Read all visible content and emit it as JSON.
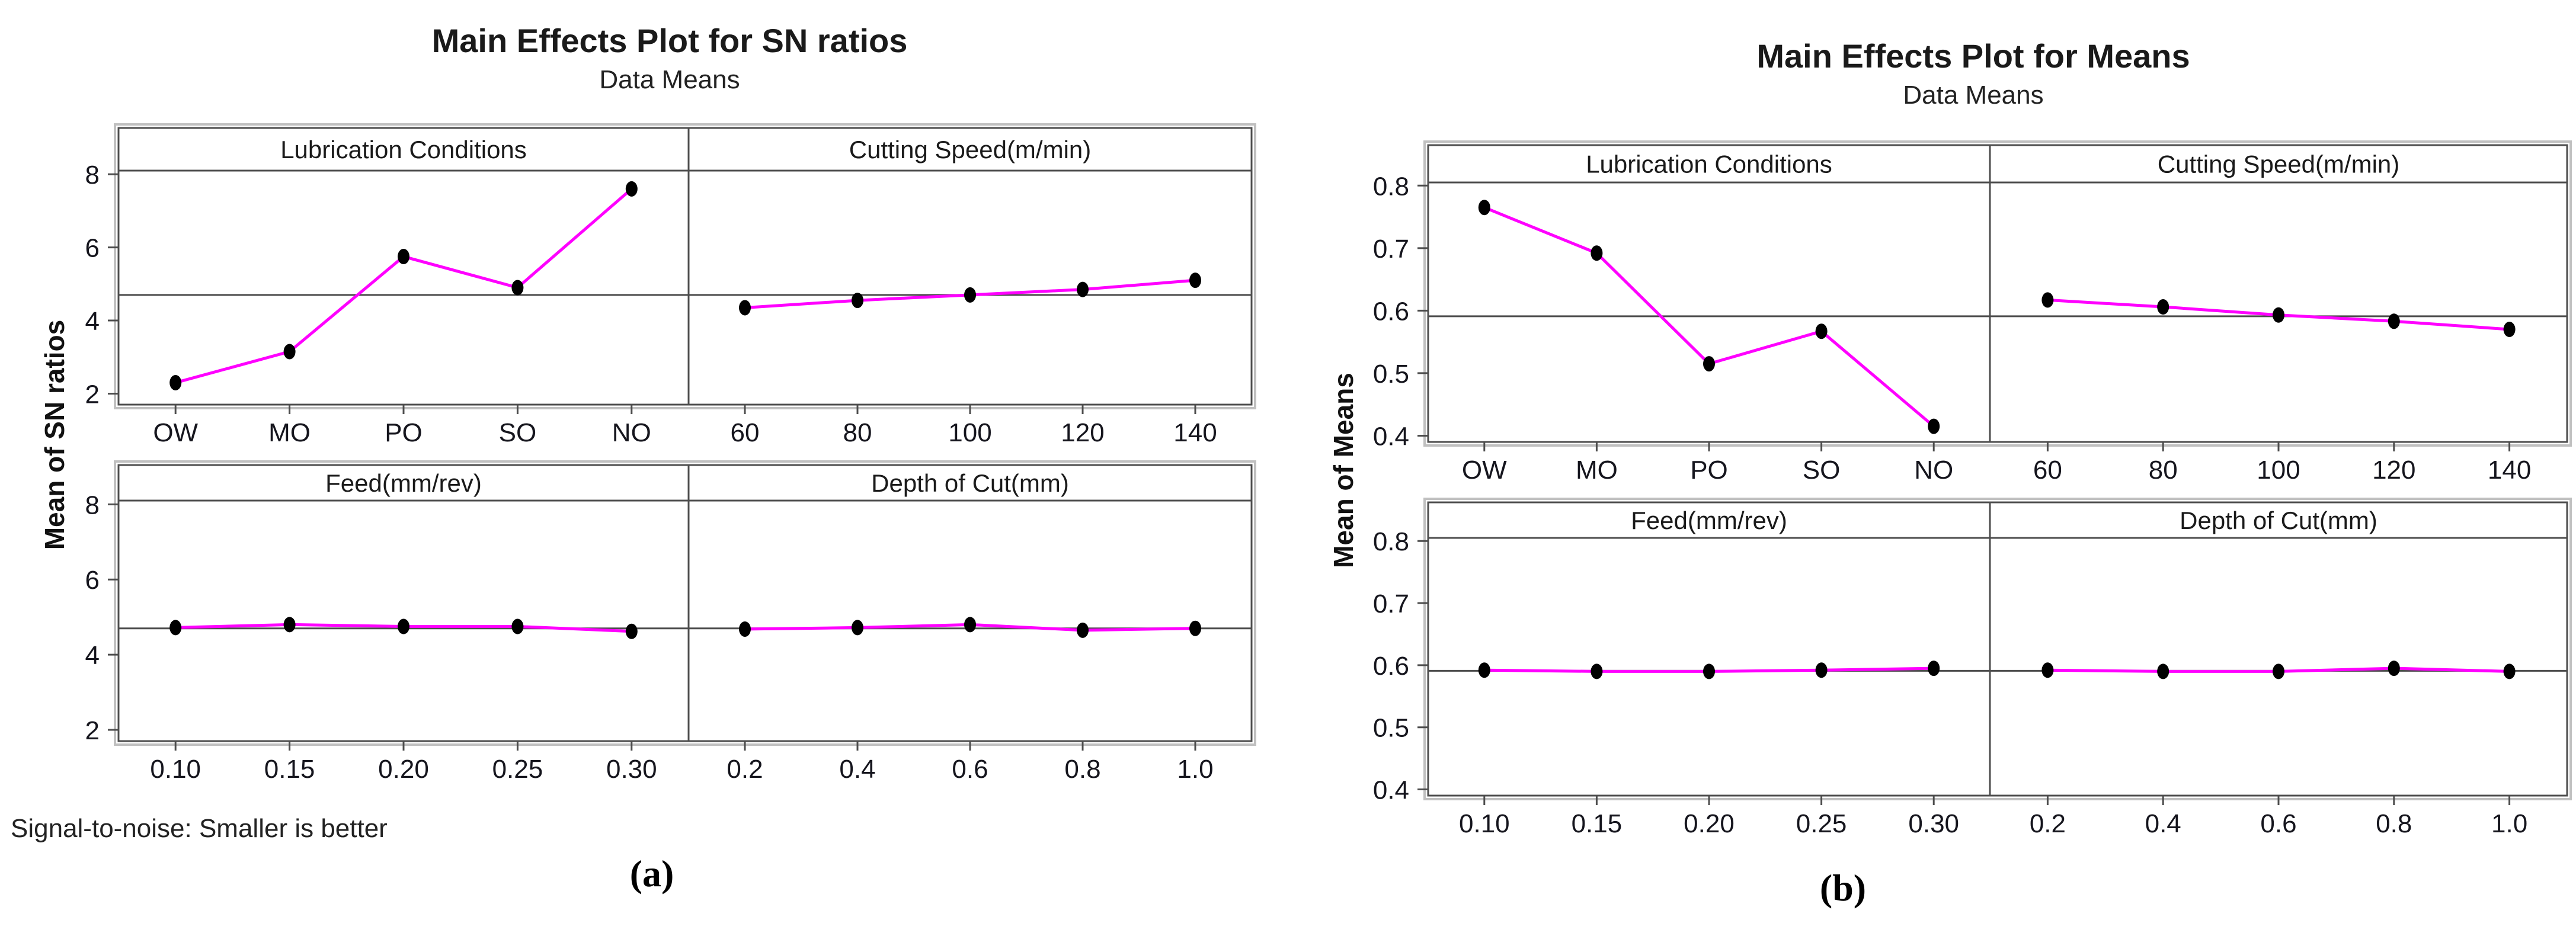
{
  "chart_data": [
    {
      "type": "line",
      "title": "Main Effects Plot for SN ratios",
      "subtitle": "Data Means",
      "ylabel": "Mean of SN ratios",
      "footnote": "Signal-to-noise: Smaller is better",
      "caption": "(a)",
      "ylim": [
        1.7,
        8.1
      ],
      "y_ticks": [
        2,
        4,
        6,
        8
      ],
      "y_tick_labels": [
        "2",
        "4",
        "6",
        "8"
      ],
      "reference_line": 4.7,
      "line_color": "#FF00FF",
      "marker_color": "#000000",
      "frame_color": "#4d4d4d",
      "outer_edge_color": "#c0c0c0",
      "grid": false,
      "legend": "none",
      "panels": [
        {
          "label": "Lubrication Conditions",
          "categories": [
            "OW",
            "MO",
            "PO",
            "SO",
            "NO"
          ],
          "values": [
            2.3,
            3.15,
            5.75,
            4.9,
            7.6
          ]
        },
        {
          "label": "Cutting Speed(m/min)",
          "categories": [
            "60",
            "80",
            "100",
            "120",
            "140"
          ],
          "values": [
            4.35,
            4.55,
            4.7,
            4.85,
            5.1
          ]
        },
        {
          "label": "Feed(mm/rev)",
          "categories": [
            "0.10",
            "0.15",
            "0.20",
            "0.25",
            "0.30"
          ],
          "values": [
            4.72,
            4.8,
            4.75,
            4.75,
            4.62
          ]
        },
        {
          "label": "Depth of Cut(mm)",
          "categories": [
            "0.2",
            "0.4",
            "0.6",
            "0.8",
            "1.0"
          ],
          "values": [
            4.68,
            4.72,
            4.8,
            4.65,
            4.7
          ]
        }
      ]
    },
    {
      "type": "line",
      "title": "Main Effects Plot for Means",
      "subtitle": "Data Means",
      "ylabel": "Mean of Means",
      "caption": "(b)",
      "ylim": [
        0.39,
        0.805
      ],
      "y_ticks": [
        0.4,
        0.5,
        0.6,
        0.7,
        0.8
      ],
      "y_tick_labels": [
        "0.4",
        "0.5",
        "0.6",
        "0.7",
        "0.8"
      ],
      "reference_line": 0.591,
      "line_color": "#FF00FF",
      "marker_color": "#000000",
      "frame_color": "#4d4d4d",
      "outer_edge_color": "#c0c0c0",
      "grid": false,
      "legend": "none",
      "panels": [
        {
          "label": "Lubrication Conditions",
          "categories": [
            "OW",
            "MO",
            "PO",
            "SO",
            "NO"
          ],
          "values": [
            0.765,
            0.692,
            0.515,
            0.567,
            0.415
          ]
        },
        {
          "label": "Cutting Speed(m/min)",
          "categories": [
            "60",
            "80",
            "100",
            "120",
            "140"
          ],
          "values": [
            0.617,
            0.606,
            0.593,
            0.583,
            0.57
          ]
        },
        {
          "label": "Feed(mm/rev)",
          "categories": [
            "0.10",
            "0.15",
            "0.20",
            "0.25",
            "0.30"
          ],
          "values": [
            0.592,
            0.59,
            0.59,
            0.592,
            0.595
          ]
        },
        {
          "label": "Depth of Cut(mm)",
          "categories": [
            "0.2",
            "0.4",
            "0.6",
            "0.8",
            "1.0"
          ],
          "values": [
            0.592,
            0.59,
            0.59,
            0.595,
            0.59
          ]
        }
      ]
    }
  ]
}
